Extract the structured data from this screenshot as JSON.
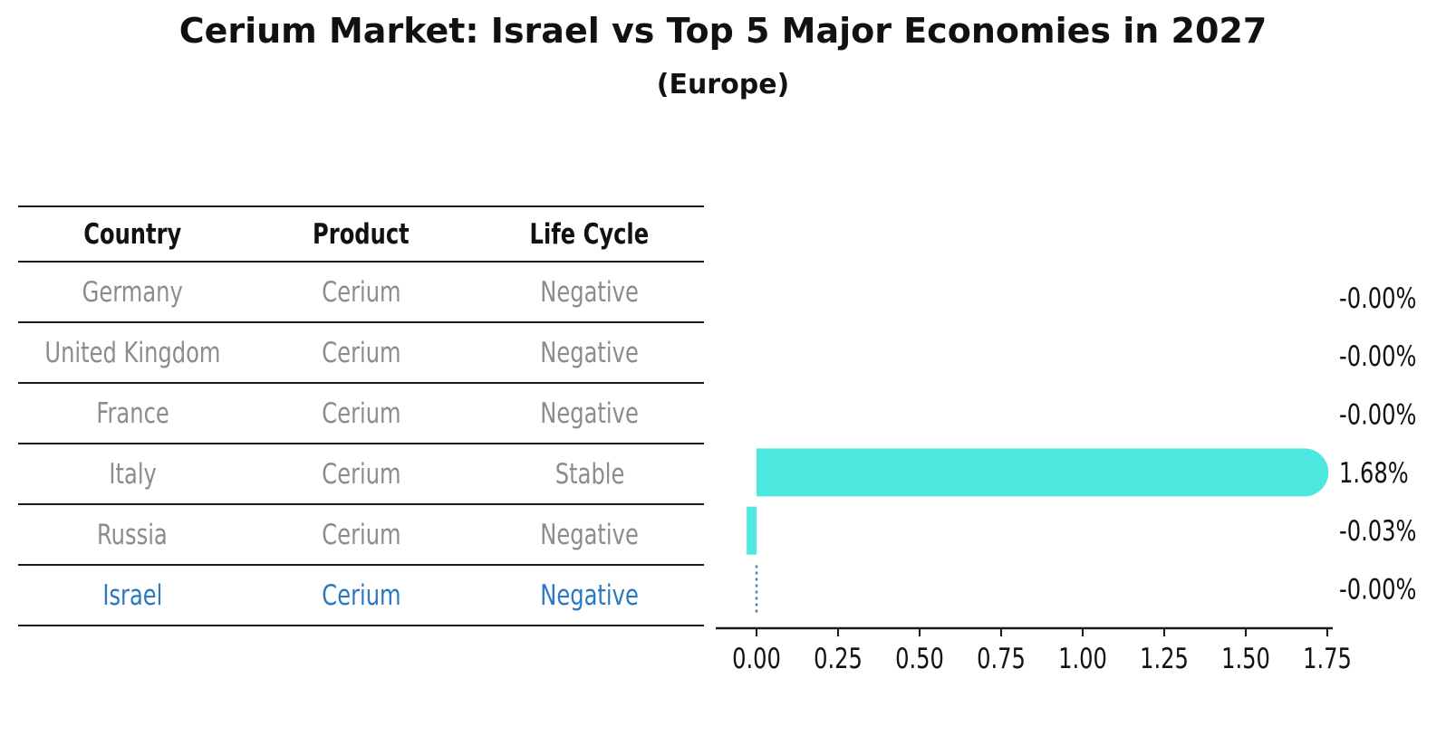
{
  "title": "Cerium Market: Israel vs Top 5 Major Economies in 2027",
  "subtitle": "(Europe)",
  "table": {
    "headers": [
      "Country",
      "Product",
      "Life Cycle"
    ],
    "rows": [
      {
        "country": "Germany",
        "product": "Cerium",
        "life_cycle": "Negative",
        "highlighted": false
      },
      {
        "country": "United Kingdom",
        "product": "Cerium",
        "life_cycle": "Negative",
        "highlighted": false
      },
      {
        "country": "France",
        "product": "Cerium",
        "life_cycle": "Negative",
        "highlighted": false
      },
      {
        "country": "Italy",
        "product": "Cerium",
        "life_cycle": "Stable",
        "highlighted": false
      },
      {
        "country": "Russia",
        "product": "Cerium",
        "life_cycle": "Negative",
        "highlighted": false
      },
      {
        "country": "Israel",
        "product": "Cerium",
        "life_cycle": "Negative",
        "highlighted": true
      }
    ]
  },
  "chart_data": {
    "type": "bar",
    "orientation": "horizontal",
    "categories": [
      "Germany",
      "United Kingdom",
      "France",
      "Italy",
      "Russia",
      "Israel"
    ],
    "values": [
      -0.0,
      -0.0,
      -0.0,
      1.68,
      -0.03,
      -0.0
    ],
    "value_labels": [
      "-0.00%",
      "-0.00%",
      "-0.00%",
      "1.68%",
      "-0.03%",
      "-0.00%"
    ],
    "tick_labels": [
      "0.00",
      "0.25",
      "0.50",
      "0.75",
      "1.00",
      "1.25",
      "1.50",
      "1.75"
    ],
    "tick_values": [
      0.0,
      0.25,
      0.5,
      0.75,
      1.0,
      1.25,
      1.5,
      1.75
    ],
    "xlim": [
      -0.125,
      1.77
    ],
    "grid": false,
    "legend": false,
    "highlight_category": "Israel",
    "highlight_marker": "dashed-line"
  },
  "colors": {
    "bar": "#4DE8E0",
    "highlight_text": "#2878C4",
    "highlight_marker": "#4C80B2",
    "table_text": "#8C8C8C",
    "axis_text": "#111111",
    "line": "#1A1A1A"
  }
}
